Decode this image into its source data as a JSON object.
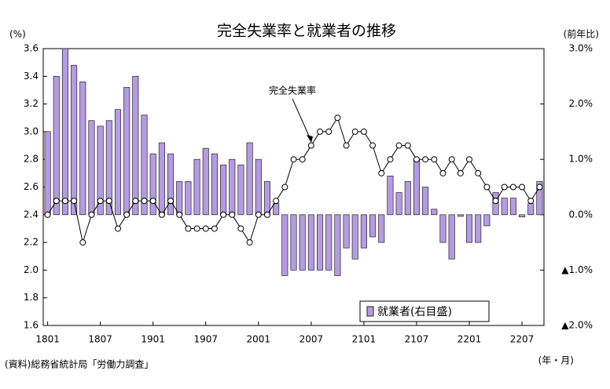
{
  "chart_data": {
    "type": "bar-line",
    "title": "完全失業率と就業者の推移",
    "y_axis_label": "(%)",
    "y2_axis_label": "(前年比)",
    "x_axis_label": "(年・月)",
    "source": "(資料)総務省統計局「労働力調査」",
    "annotation": "完全失業率",
    "categories": [
      "1801",
      null,
      null,
      null,
      null,
      null,
      "1807",
      null,
      null,
      null,
      null,
      null,
      "1901",
      null,
      null,
      null,
      null,
      null,
      "1907",
      null,
      null,
      null,
      null,
      null,
      "2001",
      null,
      null,
      null,
      null,
      null,
      "2007",
      null,
      null,
      null,
      null,
      null,
      "2101",
      null,
      null,
      null,
      null,
      null,
      "2107",
      null,
      null,
      null,
      null,
      null,
      "2201",
      null,
      null,
      null,
      null,
      null,
      "2207",
      null,
      null
    ],
    "series": [
      {
        "name": "就業者(右目盛)",
        "color": "#b59be3",
        "axis": "y2",
        "kind": "bar",
        "values": [
          1.5,
          2.5,
          3.0,
          2.7,
          2.4,
          1.7,
          1.6,
          1.7,
          1.9,
          2.3,
          2.5,
          1.8,
          1.1,
          1.3,
          1.1,
          0.6,
          0.6,
          1.0,
          1.2,
          1.1,
          0.9,
          1.0,
          0.9,
          1.3,
          1.0,
          0.6,
          0.2,
          -1.1,
          -1.0,
          -1.0,
          -1.0,
          -1.0,
          -1.0,
          -1.1,
          -0.6,
          -0.8,
          -0.6,
          -0.4,
          -0.5,
          0.7,
          0.4,
          0.6,
          1.0,
          0.5,
          0.1,
          -0.5,
          -0.8,
          -0.03,
          -0.5,
          -0.5,
          -0.2,
          0.4,
          0.3,
          0.3,
          -0.04,
          0.2,
          0.6
        ]
      },
      {
        "name": "完全失業率",
        "color": "#000000",
        "kind": "line",
        "values": [
          2.4,
          2.5,
          2.5,
          2.5,
          2.2,
          2.4,
          2.5,
          2.5,
          2.3,
          2.4,
          2.5,
          2.5,
          2.5,
          2.4,
          2.5,
          2.4,
          2.3,
          2.3,
          2.3,
          2.3,
          2.4,
          2.4,
          2.3,
          2.2,
          2.4,
          2.4,
          2.5,
          2.6,
          2.8,
          2.8,
          2.9,
          3.0,
          3.0,
          3.1,
          2.9,
          3.0,
          3.0,
          2.9,
          2.7,
          2.8,
          2.9,
          2.9,
          2.8,
          2.8,
          2.8,
          2.7,
          2.8,
          2.7,
          2.8,
          2.7,
          2.6,
          2.5,
          2.6,
          2.6,
          2.6,
          2.5,
          2.6
        ]
      }
    ],
    "ylim": [
      1.6,
      3.6
    ],
    "yticks": [
      1.6,
      1.8,
      {
        "value": 2,
        "label": "2.0"
      },
      2.2,
      2.4,
      2.6,
      2.8,
      {
        "value": 3,
        "label": "3.0"
      },
      3.2,
      3.4,
      3.6
    ],
    "y2lim": [
      -2,
      3
    ],
    "y2ticks": [
      {
        "value": 3,
        "label": "3.0%"
      },
      {
        "value": 2,
        "label": "2.0%"
      },
      {
        "value": 1,
        "label": "1.0%"
      },
      {
        "value": 0,
        "label": "0.0%"
      },
      {
        "value": -1,
        "label": "▲1.0%"
      },
      {
        "value": -2,
        "label": "▲2.0%"
      }
    ]
  }
}
